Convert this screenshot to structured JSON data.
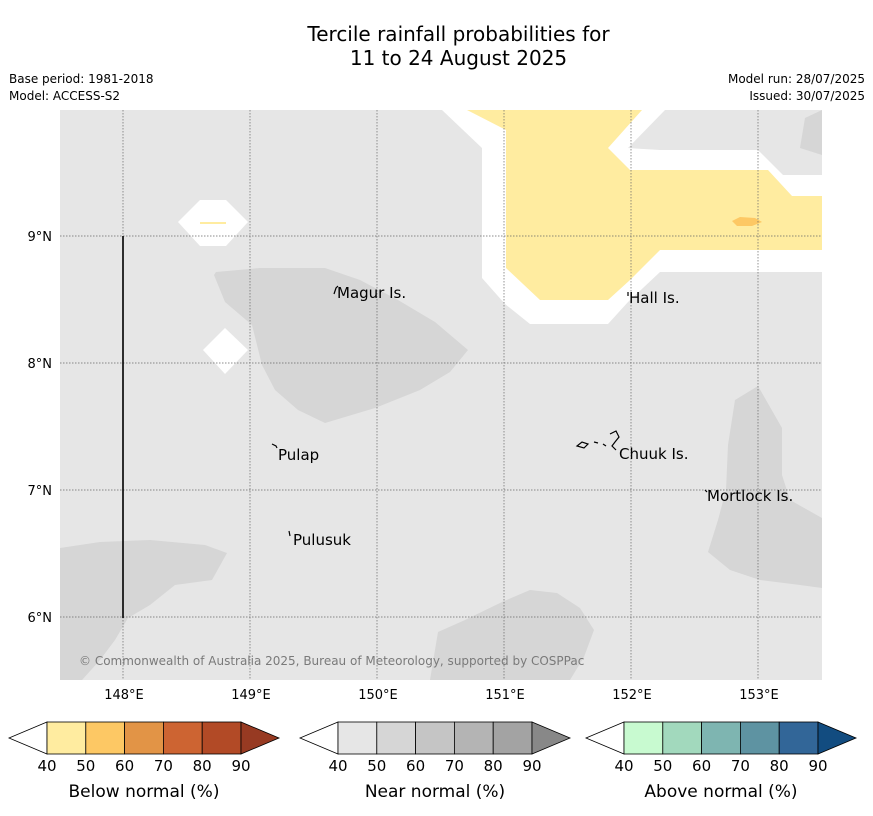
{
  "header": {
    "title_line1": "Tercile rainfall probabilities for",
    "title_line2": "11 to 24 August 2025",
    "base_period": "Base period: 1981-2018",
    "model": "Model: ACCESS-S2",
    "model_run": "Model run: 28/07/2025",
    "issued": "Issued: 30/07/2025"
  },
  "map": {
    "lon_labels": [
      "148°E",
      "149°E",
      "150°E",
      "151°E",
      "152°E",
      "153°E"
    ],
    "lat_labels": [
      "9°N",
      "8°N",
      "7°N",
      "6°N"
    ],
    "places": [
      "Magur Is.",
      "Hall Is.",
      "Pulap",
      "Chuuk Is.",
      "Mortlock Is.",
      "Pulusuk"
    ],
    "copyright": "© Commonwealth of Australia 2025, Bureau of Meteorology, supported by COSPPac"
  },
  "legends": [
    {
      "title": "Below normal (%)",
      "ticks": [
        "40",
        "50",
        "60",
        "70",
        "80",
        "90"
      ],
      "colors": [
        "#ffffff",
        "#ffeca0",
        "#fdc864",
        "#e29446",
        "#cd6432",
        "#b24a26",
        "#973a22"
      ]
    },
    {
      "title": "Near normal (%)",
      "ticks": [
        "40",
        "50",
        "60",
        "70",
        "80",
        "90"
      ],
      "colors": [
        "#ffffff",
        "#e6e6e6",
        "#d6d6d6",
        "#c5c5c5",
        "#b4b4b4",
        "#a3a3a3",
        "#888888"
      ]
    },
    {
      "title": "Above normal (%)",
      "ticks": [
        "40",
        "50",
        "60",
        "70",
        "80",
        "90"
      ],
      "colors": [
        "#ffffff",
        "#c8fad0",
        "#a2d9bd",
        "#7eb5b1",
        "#5e93a2",
        "#326698",
        "#124c80"
      ]
    }
  ],
  "colors": {
    "near_normal_40": "#e6e6e6",
    "near_normal_50": "#d6d6d6",
    "below_normal_40": "#ffeca0",
    "below_normal_50": "#fdc864"
  }
}
